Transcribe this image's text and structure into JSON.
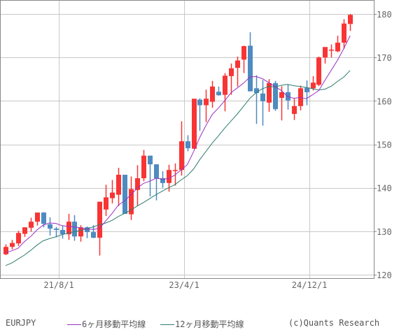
{
  "chart_data": {
    "type": "candlestick",
    "title": "",
    "symbol": "EURJPY",
    "xlabel": "",
    "ylabel": "",
    "ylim": [
      120,
      180
    ],
    "yticks": [
      120,
      130,
      140,
      150,
      160,
      170,
      180
    ],
    "xticks": [
      {
        "label": "21/8/1",
        "index": 8.5
      },
      {
        "label": "23/4/1",
        "index": 28.5
      },
      {
        "label": "24/12/1",
        "index": 48.5
      }
    ],
    "grid": true,
    "interval": "monthly",
    "colors": {
      "up": "#f83434",
      "down": "#4e8bc0",
      "ma6": "#9b30c0",
      "ma12": "#2e7d6e",
      "grid": "#c8c8c8",
      "axis": "#888888"
    },
    "candles": [
      [
        124.7,
        127.0,
        124.5,
        126.4
      ],
      [
        126.4,
        128.0,
        125.8,
        127.3
      ],
      [
        127.2,
        130.1,
        126.6,
        129.6
      ],
      [
        129.4,
        130.9,
        128.7,
        130.9
      ],
      [
        130.8,
        133.1,
        129.9,
        132.2
      ],
      [
        132.2,
        134.3,
        131.3,
        134.3
      ],
      [
        134.3,
        134.4,
        130.9,
        131.7
      ],
      [
        131.6,
        133.2,
        129.0,
        130.6
      ],
      [
        130.6,
        131.0,
        128.6,
        130.3
      ],
      [
        130.3,
        131.3,
        128.3,
        129.3
      ],
      [
        129.3,
        134.0,
        128.0,
        132.2
      ],
      [
        132.2,
        133.7,
        127.8,
        128.8
      ],
      [
        128.8,
        131.4,
        127.6,
        130.9
      ],
      [
        130.9,
        131.1,
        128.4,
        129.8
      ],
      [
        129.8,
        131.4,
        128.4,
        128.5
      ],
      [
        128.5,
        135.2,
        124.4,
        136.8
      ],
      [
        135.0,
        140.7,
        133.5,
        137.8
      ],
      [
        137.6,
        141.8,
        136.4,
        138.9
      ],
      [
        138.4,
        144.6,
        135.8,
        143.0
      ],
      [
        143.0,
        143.0,
        134.3,
        134.0
      ],
      [
        133.9,
        142.6,
        132.6,
        139.7
      ],
      [
        139.5,
        145.2,
        135.8,
        142.2
      ],
      [
        142.2,
        148.7,
        141.5,
        147.4
      ],
      [
        147.4,
        147.4,
        138.0,
        145.4
      ],
      [
        145.4,
        145.4,
        137.1,
        142.2
      ],
      [
        142.2,
        143.8,
        140.0,
        141.1
      ],
      [
        141.1,
        145.3,
        139.1,
        144.1
      ],
      [
        144.1,
        145.6,
        140.5,
        144.1
      ],
      [
        144.1,
        155.3,
        142.8,
        150.7
      ],
      [
        150.7,
        152.1,
        148.4,
        149.1
      ],
      [
        149.0,
        157.3,
        148.9,
        160.5
      ],
      [
        160.3,
        160.6,
        153.1,
        159.0
      ],
      [
        159.0,
        162.6,
        155.1,
        160.5
      ],
      [
        159.8,
        164.6,
        158.4,
        163.3
      ],
      [
        162.1,
        163.3,
        161.2,
        161.3
      ],
      [
        161.4,
        166.4,
        157.6,
        165.8
      ],
      [
        165.7,
        168.6,
        161.4,
        167.5
      ],
      [
        167.6,
        170.2,
        163.3,
        169.3
      ],
      [
        169.5,
        172.7,
        166.4,
        172.6
      ],
      [
        172.7,
        175.8,
        162.2,
        162.2
      ],
      [
        162.9,
        165.9,
        154.7,
        161.8
      ],
      [
        161.7,
        164.8,
        154.3,
        159.9
      ],
      [
        159.6,
        165.0,
        157.5,
        164.1
      ],
      [
        164.1,
        164.6,
        157.7,
        158.1
      ],
      [
        160.7,
        163.4,
        155.5,
        162.0
      ],
      [
        162.0,
        163.8,
        158.0,
        160.1
      ],
      [
        157.0,
        160.5,
        155.6,
        158.8
      ],
      [
        158.8,
        163.5,
        157.8,
        162.9
      ],
      [
        163.0,
        164.7,
        159.0,
        162.0
      ],
      [
        162.9,
        165.7,
        162.4,
        164.2
      ],
      [
        163.7,
        170.2,
        163.4,
        170.0
      ],
      [
        170.0,
        172.0,
        168.6,
        172.4
      ],
      [
        171.7,
        173.0,
        170.0,
        171.8
      ],
      [
        171.4,
        175.0,
        171.2,
        173.4
      ],
      [
        173.4,
        178.8,
        172.0,
        177.8
      ],
      [
        177.7,
        180.0,
        176.1,
        179.8
      ]
    ],
    "series": [
      {
        "name": "6ヶ月移動平均線",
        "color": "#9b30c0",
        "values": [
          125.1,
          125.5,
          126.1,
          127.6,
          128.8,
          130.3,
          131.4,
          131.9,
          131.8,
          131.3,
          131.1,
          131.0,
          130.8,
          130.5,
          130.4,
          130.7,
          132.4,
          134.1,
          136.0,
          137.0,
          138.4,
          139.9,
          141.0,
          141.5,
          142.2,
          142.0,
          142.1,
          142.9,
          144.1,
          145.3,
          148.3,
          151.6,
          154.4,
          156.9,
          158.4,
          160.1,
          161.9,
          163.0,
          164.1,
          165.5,
          165.6,
          165.1,
          164.2,
          163.3,
          162.4,
          161.0,
          160.6,
          160.8,
          160.5,
          161.4,
          162.4,
          164.8,
          167.1,
          169.4,
          172.1,
          175.0
        ]
      },
      {
        "name": "12ヶ月移動平均線",
        "color": "#2e7d6e",
        "values": [
          122.1,
          122.7,
          123.6,
          124.5,
          125.6,
          126.8,
          127.8,
          128.3,
          128.7,
          129.2,
          129.6,
          129.9,
          130.2,
          130.6,
          131.0,
          131.5,
          131.9,
          132.5,
          133.4,
          134.1,
          134.9,
          135.8,
          136.6,
          137.5,
          138.4,
          139.2,
          140.0,
          140.7,
          141.8,
          142.8,
          144.3,
          146.5,
          148.4,
          150.3,
          152.0,
          153.8,
          155.4,
          157.0,
          158.8,
          160.6,
          161.9,
          162.8,
          163.3,
          163.2,
          163.6,
          163.8,
          163.5,
          163.3,
          163.1,
          162.8,
          162.5,
          162.7,
          163.4,
          164.5,
          165.5,
          167.0
        ]
      }
    ]
  },
  "axis": {
    "y_labels": [
      "180",
      "170",
      "160",
      "150",
      "140",
      "130",
      "120"
    ],
    "x_labels": [
      "21/8/1",
      "23/4/1",
      "24/12/1"
    ]
  },
  "legend": {
    "symbol": "EURJPY",
    "ma6_label": "6ヶ月移動平均線",
    "ma12_label": "12ヶ月移動平均線",
    "ma6_color": "#9b30c0",
    "ma12_color": "#2e7d6e",
    "copyright": "(c)Quants Research"
  }
}
